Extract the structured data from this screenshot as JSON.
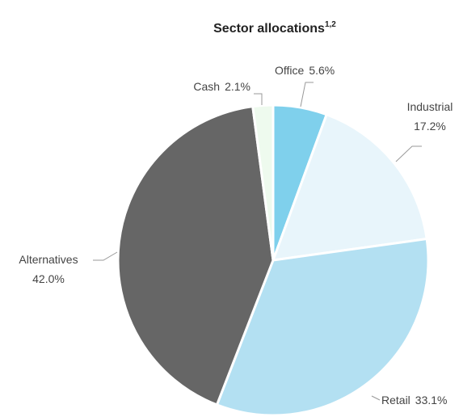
{
  "chart_data": {
    "type": "pie",
    "title": "Sector allocations",
    "title_superscript": "1,2",
    "categories": [
      "Office",
      "Industrial",
      "Retail",
      "Alternatives",
      "Cash"
    ],
    "values": [
      5.6,
      17.2,
      33.1,
      42.0,
      2.1
    ],
    "value_labels": [
      "5.6%",
      "17.2%",
      "33.1%",
      "42.0%",
      "2.1%"
    ],
    "colors": [
      "#7fd0ec",
      "#e8f5fb",
      "#b3e0f2",
      "#666666",
      "#eefaee"
    ]
  }
}
